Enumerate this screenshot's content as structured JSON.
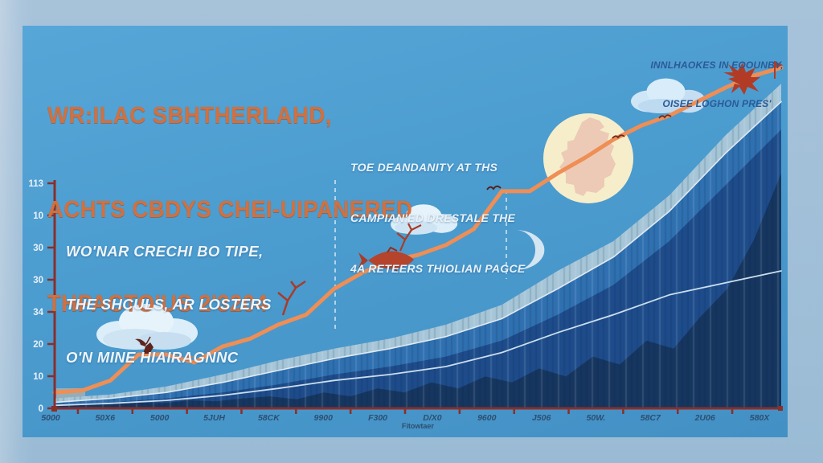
{
  "colors": {
    "frame_bg": "#c9dcea",
    "panel_sky": "#4b9ccf",
    "title_orange": "#d2703e",
    "note_white": "#eef5fa",
    "note_navy": "#2b5a97",
    "axis_red": "#8a2f2a",
    "trend_orange": "#ef8e55",
    "sun_yellow": "#f6eecb",
    "sun_map_pink": "#eac3b3",
    "cloud_white": "#e6f3fb",
    "bird_red": "#b23b25"
  },
  "title": {
    "line1": "WR:ILAC SBHTHERLAHD,",
    "line2": "ACHTS CBDYS CHEI-UIPANERED",
    "line3": "THPACTO'US 2'3204"
  },
  "notes": {
    "top_right": [
      "INNLHAOKES IN EOOUNBY,",
      "OISEE LOGHON PRES'"
    ],
    "middle": [
      "TOE DEANDANITY AT THS",
      "CAMPIAN'ED DRESTALE THE",
      "4A RETEERS THIOLIAN PAGCE"
    ],
    "left": [
      "WO'NAR CRECHI BO TIPE,",
      "THE SHCULS, AR LOSTERS",
      "O'N MINE HIAIRAGNNC"
    ]
  },
  "chart_data": {
    "type": "area",
    "title": "WR:ILAC SBHTHERLAHD, ACHTS CBDYS CHEI-UIPANERED THPACTO'US 2'3204",
    "xlabel": "Fitowtaer",
    "ylabel": "",
    "x_tick_labels": [
      "5000",
      "50X6",
      "5000",
      "5JUH",
      "58CK",
      "9900",
      "F300",
      "D/X0",
      "9600",
      "J506",
      "50W.",
      "58C7",
      "2U06",
      "580X"
    ],
    "y_tick_labels_top_to_bottom": [
      "113",
      "10",
      "30",
      "30",
      "34",
      "20",
      "10",
      "0"
    ],
    "ylim": [
      0,
      113
    ],
    "grid": false,
    "legend": false,
    "note": "Decorative AI-style infographic; garbled labels transcribed as rendered. Values estimated in axis units; upper series rise beyond the labeled axis range.",
    "series": [
      {
        "name": "band-light",
        "type": "area",
        "color": "#a6c6d8",
        "values": [
          5,
          7,
          11,
          17,
          24,
          30,
          35,
          42,
          52,
          69,
          84,
          107,
          137,
          163
        ]
      },
      {
        "name": "band-mid",
        "type": "area",
        "color": "#2f70b0",
        "values": [
          3,
          5,
          8,
          13,
          19,
          25,
          30,
          36,
          45,
          60,
          76,
          99,
          128,
          154
        ]
      },
      {
        "name": "band-dark",
        "type": "area",
        "color": "#1e4c8a",
        "values": [
          2,
          3,
          5,
          8,
          12,
          17,
          21,
          26,
          34,
          47,
          62,
          84,
          112,
          140
        ]
      },
      {
        "name": "band-navy",
        "type": "area",
        "color": "#16365f",
        "values": [
          1,
          1.5,
          2,
          3,
          2.5,
          4,
          3.5,
          5,
          6,
          4.5,
          8,
          6,
          10,
          8,
          13,
          10,
          16,
          13,
          20,
          16,
          26,
          22,
          34,
          30,
          46,
          60,
          85,
          118
        ]
      },
      {
        "name": "white-step-line",
        "type": "line",
        "color": "#dfeaf3",
        "width": 1.6,
        "values": [
          3,
          5,
          8,
          13,
          19,
          25,
          30,
          36,
          45,
          60,
          76,
          99,
          128,
          154
        ]
      },
      {
        "name": "white-wave-line",
        "type": "line",
        "color": "#cadeee",
        "width": 1.8,
        "values": [
          1.5,
          2.5,
          4,
          6.5,
          10,
          14,
          17,
          21,
          28,
          38,
          47,
          57,
          63,
          69
        ]
      },
      {
        "name": "trend-line",
        "type": "line",
        "color": "#ef8e55",
        "width": 5,
        "values": [
          8,
          9,
          14,
          27,
          27,
          23,
          31,
          35,
          42,
          47,
          60,
          68,
          74,
          77,
          82,
          90,
          109,
          109,
          118,
          126,
          135,
          142,
          147,
          154,
          161,
          167,
          171
        ]
      }
    ]
  }
}
